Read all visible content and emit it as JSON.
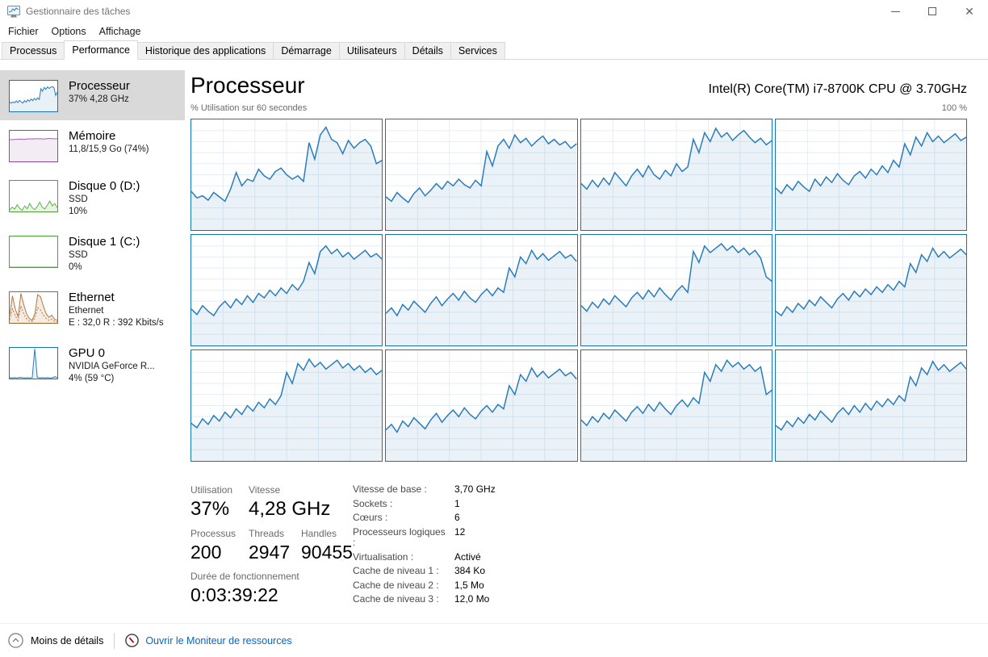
{
  "window": {
    "title": "Gestionnaire des tâches"
  },
  "menu": {
    "items": [
      "Fichier",
      "Options",
      "Affichage"
    ]
  },
  "tabs": {
    "active": "Performance",
    "items": [
      "Processus",
      "Performance",
      "Historique des applications",
      "Démarrage",
      "Utilisateurs",
      "Détails",
      "Services"
    ]
  },
  "sidebar": {
    "items": [
      {
        "id": "cpu",
        "title": "Processeur",
        "lines": [
          "37%  4,28 GHz"
        ],
        "selected": true,
        "border": "#1273b6",
        "line": "#2b7cba",
        "fill": "rgba(27,115,182,0.10)"
      },
      {
        "id": "memory",
        "title": "Mémoire",
        "lines": [
          "11,8/15,9 Go (74%)"
        ],
        "selected": false,
        "border": "#9146a1",
        "line": "#a65cb0",
        "fill": "rgba(145,70,161,0.10)"
      },
      {
        "id": "disk0",
        "title": "Disque 0 (D:)",
        "lines": [
          "SSD",
          "10%"
        ],
        "selected": false,
        "border": "#4aa335",
        "line": "#62b14a",
        "fill": "rgba(74,163,53,0.12)"
      },
      {
        "id": "disk1",
        "title": "Disque 1 (C:)",
        "lines": [
          "SSD",
          "0%"
        ],
        "selected": false,
        "border": "#4aa335",
        "line": "#62b14a",
        "fill": "rgba(74,163,53,0.12)"
      },
      {
        "id": "ethernet",
        "title": "Ethernet",
        "lines": [
          "Ethernet",
          "E : 32,0 R : 392 Kbits/s"
        ],
        "selected": false,
        "border": "#a0632a",
        "line": "#b5773d",
        "fill": "rgba(160,99,42,0.12)"
      },
      {
        "id": "gpu",
        "title": "GPU 0",
        "lines": [
          "NVIDIA GeForce R...",
          "4%  (59 °C)"
        ],
        "selected": false,
        "border": "#1273b6",
        "line": "#2b7cba",
        "fill": "rgba(27,115,182,0.10)"
      }
    ]
  },
  "main": {
    "title": "Processeur",
    "cpu_name": "Intel(R) Core(TM) i7-8700K CPU @ 3.70GHz",
    "axis_label": "% Utilisation sur 60 secondes",
    "axis_max": "100 %"
  },
  "stats": {
    "big": [
      {
        "label": "Utilisation",
        "value": "37%"
      },
      {
        "label": "Vitesse",
        "value": "4,28 GHz"
      }
    ],
    "medium": [
      {
        "label": "Processus",
        "value": "200"
      },
      {
        "label": "Threads",
        "value": "2947"
      },
      {
        "label": "Handles",
        "value": "90455"
      }
    ],
    "uptime": {
      "label": "Durée de fonctionnement",
      "value": "0:03:39:22"
    },
    "details": [
      {
        "label": "Vitesse de base :",
        "value": "3,70 GHz"
      },
      {
        "label": "Sockets :",
        "value": "1"
      },
      {
        "label": "Cœurs :",
        "value": "6"
      },
      {
        "label": "Processeurs logiques :",
        "value": "12"
      },
      {
        "label": "Virtualisation :",
        "value": "Activé"
      },
      {
        "label": "Cache de niveau 1 :",
        "value": "384 Ko"
      },
      {
        "label": "Cache de niveau 2 :",
        "value": "1,5 Mo"
      },
      {
        "label": "Cache de niveau 3 :",
        "value": "12,0 Mo"
      }
    ]
  },
  "footer": {
    "less_details": "Moins de détails",
    "open_resmon": "Ouvrir le Moniteur de ressources"
  },
  "colors": {
    "cpu_border": "#1273b6",
    "cpu_line": "#2b7cba",
    "cpu_fill": "rgba(27,115,182,0.09)",
    "grid_line": "#e3edf6",
    "link": "#0066cc",
    "selected_bg": "#d9d9d9"
  },
  "chart_data": {
    "type": "area",
    "title": "% Utilisation sur 60 secondes",
    "ylabel": "% utilisation",
    "ylim": [
      0,
      100
    ],
    "x_window_seconds": 60,
    "grid": true,
    "cpu_graphs": [
      [
        35,
        29,
        31,
        27,
        34,
        30,
        26,
        37,
        52,
        40,
        46,
        44,
        55,
        49,
        46,
        53,
        56,
        50,
        46,
        49,
        44,
        79,
        64,
        86,
        93,
        82,
        79,
        69,
        81,
        74,
        79,
        82,
        76,
        60,
        63
      ],
      [
        30,
        26,
        34,
        29,
        25,
        33,
        38,
        31,
        36,
        42,
        37,
        44,
        40,
        46,
        41,
        38,
        45,
        40,
        71,
        58,
        76,
        82,
        74,
        86,
        79,
        83,
        76,
        81,
        85,
        78,
        82,
        77,
        80,
        74,
        78
      ],
      [
        42,
        37,
        45,
        39,
        47,
        41,
        52,
        46,
        40,
        49,
        55,
        48,
        58,
        50,
        46,
        54,
        49,
        60,
        53,
        57,
        82,
        70,
        88,
        80,
        92,
        84,
        88,
        81,
        86,
        90,
        84,
        79,
        83,
        77,
        81
      ],
      [
        38,
        33,
        41,
        36,
        44,
        39,
        35,
        46,
        40,
        48,
        43,
        51,
        45,
        41,
        49,
        53,
        47,
        55,
        50,
        58,
        52,
        63,
        57,
        78,
        68,
        84,
        76,
        88,
        80,
        85,
        79,
        83,
        87,
        81,
        84
      ],
      [
        33,
        28,
        36,
        31,
        27,
        35,
        40,
        34,
        42,
        37,
        45,
        39,
        47,
        43,
        50,
        45,
        52,
        47,
        55,
        50,
        58,
        75,
        65,
        85,
        90,
        83,
        87,
        80,
        84,
        78,
        82,
        86,
        80,
        83,
        78
      ],
      [
        29,
        34,
        27,
        37,
        32,
        40,
        35,
        30,
        38,
        44,
        36,
        42,
        47,
        41,
        49,
        43,
        39,
        46,
        51,
        45,
        52,
        48,
        70,
        62,
        80,
        74,
        86,
        78,
        83,
        77,
        81,
        85,
        79,
        82,
        76
      ],
      [
        36,
        31,
        39,
        34,
        42,
        37,
        45,
        40,
        35,
        43,
        48,
        42,
        50,
        44,
        52,
        46,
        41,
        49,
        54,
        48,
        85,
        75,
        90,
        84,
        88,
        92,
        86,
        90,
        84,
        88,
        82,
        86,
        79,
        62,
        58
      ],
      [
        31,
        27,
        35,
        30,
        38,
        33,
        41,
        36,
        44,
        39,
        34,
        42,
        47,
        41,
        49,
        44,
        51,
        46,
        53,
        48,
        55,
        50,
        58,
        53,
        74,
        66,
        82,
        76,
        88,
        80,
        85,
        79,
        83,
        87,
        82
      ],
      [
        34,
        30,
        38,
        33,
        41,
        36,
        44,
        39,
        47,
        42,
        50,
        45,
        53,
        48,
        56,
        51,
        59,
        80,
        70,
        88,
        82,
        92,
        85,
        89,
        83,
        87,
        91,
        84,
        88,
        82,
        86,
        80,
        84,
        78,
        82
      ],
      [
        28,
        33,
        26,
        36,
        31,
        39,
        34,
        29,
        37,
        43,
        35,
        41,
        46,
        40,
        48,
        42,
        38,
        45,
        50,
        44,
        51,
        47,
        68,
        60,
        78,
        72,
        84,
        76,
        81,
        75,
        79,
        83,
        77,
        80,
        74
      ],
      [
        37,
        32,
        40,
        35,
        43,
        38,
        46,
        41,
        36,
        44,
        49,
        43,
        51,
        45,
        53,
        47,
        42,
        50,
        55,
        49,
        57,
        52,
        80,
        72,
        87,
        81,
        91,
        85,
        89,
        83,
        87,
        81,
        85,
        60,
        64
      ],
      [
        32,
        28,
        36,
        31,
        39,
        34,
        42,
        37,
        45,
        40,
        35,
        43,
        48,
        42,
        50,
        44,
        52,
        46,
        54,
        49,
        56,
        51,
        59,
        54,
        76,
        68,
        84,
        78,
        90,
        82,
        87,
        81,
        85,
        89,
        83
      ]
    ],
    "sidebar_sparks": {
      "cpu": {
        "values": [
          30,
          27,
          31,
          28,
          34,
          29,
          36,
          31,
          27,
          35,
          30,
          38,
          33,
          40,
          35,
          42,
          37,
          44,
          39,
          74,
          66,
          78,
          72,
          80,
          75,
          78,
          81,
          77,
          52,
          63
        ]
      },
      "memory": {
        "values": [
          71,
          71,
          72,
          72,
          73,
          72,
          73,
          74,
          73,
          74,
          74,
          74,
          73,
          74,
          75,
          74,
          74,
          74
        ]
      },
      "disk0": {
        "values": [
          6,
          14,
          8,
          22,
          10,
          4,
          18,
          9,
          26,
          12,
          6,
          16,
          30,
          14,
          8,
          20,
          34,
          18,
          26,
          12
        ]
      },
      "disk1": {
        "values": [
          0,
          0,
          0,
          0,
          0,
          0,
          0,
          0,
          0,
          0,
          0,
          0,
          0,
          0,
          0,
          0
        ]
      },
      "ethernet": {
        "values": [
          25,
          88,
          45,
          20,
          96,
          60,
          30,
          15,
          8,
          30,
          92,
          85,
          55,
          30,
          18,
          25,
          12,
          8
        ],
        "values2": [
          10,
          45,
          22,
          8,
          55,
          30,
          14,
          6,
          4,
          16,
          50,
          42,
          26,
          14,
          8,
          12,
          5,
          3
        ]
      },
      "gpu": {
        "values": [
          3,
          2,
          3,
          2,
          4,
          3,
          2,
          3,
          2,
          3,
          97,
          4,
          2,
          3,
          2,
          3,
          2,
          2,
          6,
          3
        ]
      }
    }
  }
}
